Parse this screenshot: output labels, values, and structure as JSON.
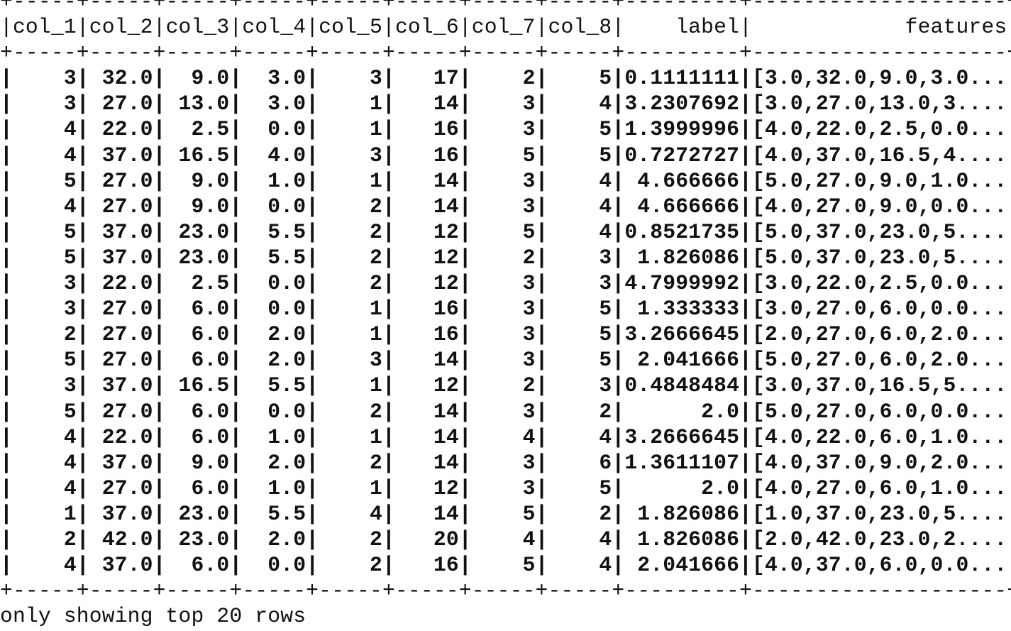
{
  "table": {
    "columns": [
      "col_1",
      "col_2",
      "col_3",
      "col_4",
      "col_5",
      "col_6",
      "col_7",
      "col_8",
      "label",
      "features"
    ],
    "widths": [
      5,
      5,
      5,
      5,
      5,
      5,
      5,
      5,
      9,
      20
    ],
    "align": [
      "center",
      "center",
      "center",
      "center",
      "center",
      "center",
      "center",
      "center",
      "right",
      "right"
    ],
    "rows": [
      [
        "3",
        "32.0",
        "9.0",
        "3.0",
        "3",
        "17",
        "2",
        "5",
        "0.1111111",
        "[3.0,32.0,9.0,3.0..."
      ],
      [
        "3",
        "27.0",
        "13.0",
        "3.0",
        "1",
        "14",
        "3",
        "4",
        "3.2307692",
        "[3.0,27.0,13.0,3...."
      ],
      [
        "4",
        "22.0",
        "2.5",
        "0.0",
        "1",
        "16",
        "3",
        "5",
        "1.3999996",
        "[4.0,22.0,2.5,0.0..."
      ],
      [
        "4",
        "37.0",
        "16.5",
        "4.0",
        "3",
        "16",
        "5",
        "5",
        "0.7272727",
        "[4.0,37.0,16.5,4...."
      ],
      [
        "5",
        "27.0",
        "9.0",
        "1.0",
        "1",
        "14",
        "3",
        "4",
        "4.666666",
        "[5.0,27.0,9.0,1.0..."
      ],
      [
        "4",
        "27.0",
        "9.0",
        "0.0",
        "2",
        "14",
        "3",
        "4",
        "4.666666",
        "[4.0,27.0,9.0,0.0..."
      ],
      [
        "5",
        "37.0",
        "23.0",
        "5.5",
        "2",
        "12",
        "5",
        "4",
        "0.8521735",
        "[5.0,37.0,23.0,5...."
      ],
      [
        "5",
        "37.0",
        "23.0",
        "5.5",
        "2",
        "12",
        "2",
        "3",
        "1.826086",
        "[5.0,37.0,23.0,5...."
      ],
      [
        "3",
        "22.0",
        "2.5",
        "0.0",
        "2",
        "12",
        "3",
        "3",
        "4.7999992",
        "[3.0,22.0,2.5,0.0..."
      ],
      [
        "3",
        "27.0",
        "6.0",
        "0.0",
        "1",
        "16",
        "3",
        "5",
        "1.333333",
        "[3.0,27.0,6.0,0.0..."
      ],
      [
        "2",
        "27.0",
        "6.0",
        "2.0",
        "1",
        "16",
        "3",
        "5",
        "3.2666645",
        "[2.0,27.0,6.0,2.0..."
      ],
      [
        "5",
        "27.0",
        "6.0",
        "2.0",
        "3",
        "14",
        "3",
        "5",
        "2.041666",
        "[5.0,27.0,6.0,2.0..."
      ],
      [
        "3",
        "37.0",
        "16.5",
        "5.5",
        "1",
        "12",
        "2",
        "3",
        "0.4848484",
        "[3.0,37.0,16.5,5...."
      ],
      [
        "5",
        "27.0",
        "6.0",
        "0.0",
        "2",
        "14",
        "3",
        "2",
        "2.0",
        "[5.0,27.0,6.0,0.0..."
      ],
      [
        "4",
        "22.0",
        "6.0",
        "1.0",
        "1",
        "14",
        "4",
        "4",
        "3.2666645",
        "[4.0,22.0,6.0,1.0..."
      ],
      [
        "4",
        "37.0",
        "9.0",
        "2.0",
        "2",
        "14",
        "3",
        "6",
        "1.3611107",
        "[4.0,37.0,9.0,2.0..."
      ],
      [
        "4",
        "27.0",
        "6.0",
        "1.0",
        "1",
        "12",
        "3",
        "5",
        "2.0",
        "[4.0,27.0,6.0,1.0..."
      ],
      [
        "1",
        "37.0",
        "23.0",
        "5.5",
        "4",
        "14",
        "5",
        "2",
        "1.826086",
        "[1.0,37.0,23.0,5...."
      ],
      [
        "2",
        "42.0",
        "23.0",
        "2.0",
        "2",
        "20",
        "4",
        "4",
        "1.826086",
        "[2.0,42.0,23.0,2...."
      ],
      [
        "4",
        "37.0",
        "6.0",
        "0.0",
        "2",
        "16",
        "5",
        "4",
        "2.041666",
        "[4.0,37.0,6.0,0.0..."
      ]
    ],
    "footer": "only showing top 20 rows"
  }
}
